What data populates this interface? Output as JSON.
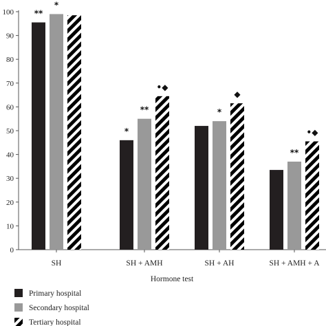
{
  "chart_data": {
    "type": "bar",
    "title": "",
    "xlabel": "Hormone test",
    "ylabel": "",
    "ylim": [
      0,
      100
    ],
    "yticks": [
      0,
      10,
      20,
      30,
      40,
      50,
      60,
      70,
      80,
      90,
      100
    ],
    "categories": [
      "SH",
      "SH + AMH",
      "SH + AH",
      "SH + AMH + A"
    ],
    "series": [
      {
        "name": "Primary hospital",
        "values": [
          95.5,
          46,
          52,
          33.5
        ],
        "color": "#231f20",
        "pattern": "solid"
      },
      {
        "name": "Secondary hospital",
        "values": [
          99,
          55,
          54,
          37
        ],
        "color": "#999999",
        "pattern": "solid"
      },
      {
        "name": "Tertiary hospital",
        "values": [
          98.5,
          64.5,
          61.5,
          45.5
        ],
        "color": "#000000",
        "pattern": "diagonal-stripes"
      }
    ],
    "annotations": [
      {
        "category": 0,
        "series": 0,
        "text": "**"
      },
      {
        "category": 0,
        "series": 1,
        "text": "*"
      },
      {
        "category": 1,
        "series": 0,
        "text": "*"
      },
      {
        "category": 1,
        "series": 1,
        "text": "**"
      },
      {
        "category": 1,
        "series": 2,
        "text": "•◆"
      },
      {
        "category": 2,
        "series": 1,
        "text": "*"
      },
      {
        "category": 2,
        "series": 2,
        "text": "◆"
      },
      {
        "category": 3,
        "series": 1,
        "text": "**"
      },
      {
        "category": 3,
        "series": 2,
        "text": "•◆"
      }
    ],
    "grid": false,
    "legend_position": "bottom-left"
  }
}
